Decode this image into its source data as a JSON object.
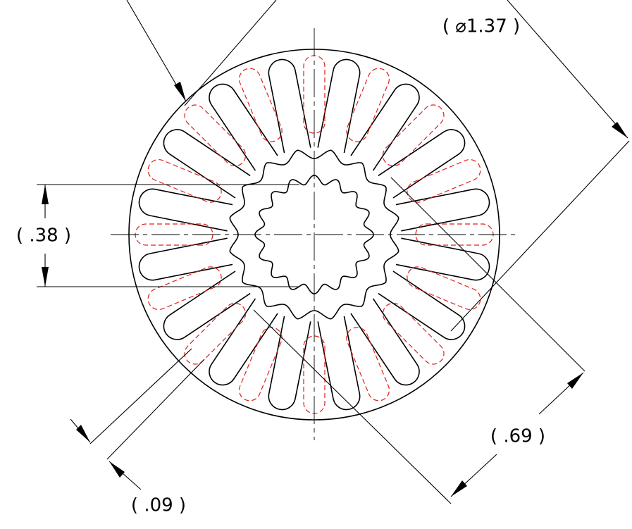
{
  "dimensions": {
    "diameter": "( ⌀1.37 )",
    "height": "( .38 )",
    "across": "( .69 )",
    "gap": "( .09 )"
  }
}
